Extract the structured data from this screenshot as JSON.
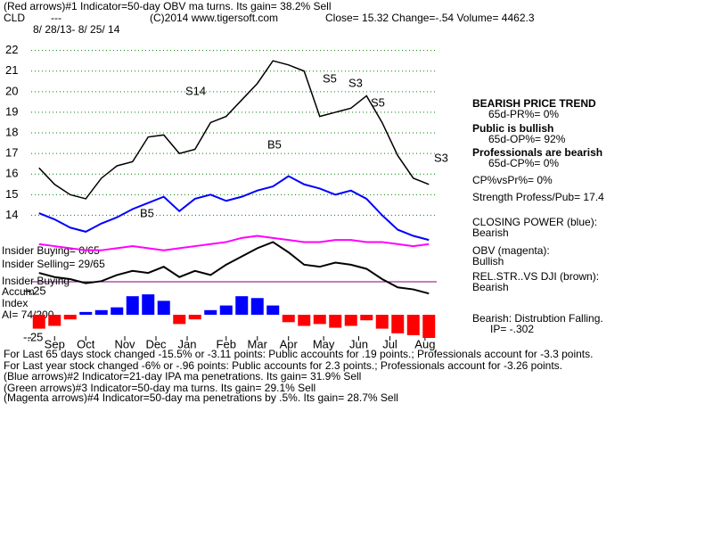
{
  "texts": {
    "line1": "(Red arrows)#1 Indicator=50-day OBV ma turns. Its gain= 38.2% Sell",
    "symbol": "CLD",
    "dash": "---",
    "copyright": "(C)2014 www.tigersoft.com",
    "quote": "Close=  15.32  Change=-.54 Volume= 4462.3",
    "dates": "8/ 28/13- 8/ 25/ 14",
    "insider_buying": "Insider Buying= 0/65",
    "insider_selling": "Insider Selling= 29/65",
    "insider_buying2": "Insider Buying",
    "accum": "Accum",
    "index": "Index",
    "ai": "AI= 74/200",
    "trend": "BEARISH PRICE TREND",
    "pr": "65d-PR%= 0%",
    "public": "Public is bullish",
    "op": "65d-OP%= 92%",
    "pros": "Professionals are bearish",
    "cp": "65d-CP%= 0%",
    "cpvspr": "CP%vsPr%=  0%",
    "strength": "Strength Profess/Pub= 17.4",
    "cp_label": "CLOSING POWER (blue):",
    "cp_state": "Bearish",
    "obv_label": "OBV (magenta):",
    "obv_state": "Bullish",
    "rs_label": "REL.STR..VS DJI (brown):",
    "rs_state": "Bearish",
    "dist": "Bearish: Distrubtion Falling.",
    "ip": "IP= -.302",
    "foot1": "For Last 65 days stock changed -15.5% or -3.11 points:  Public accounts for  .19 points.;  Professionals account for -3.3 points.",
    "foot2": "For Last year stock changed -6% or -.96 points:  Public accounts for  2.3 points.;  Professionals account for -3.26 points.",
    "foot3": "(Blue arrows)#2 Indicator=21-day IPA ma penetrations. Its gain= 31.9% Sell",
    "foot4": "(Green arrows)#3 Indicator=50-day ma turns. Its gain= 29.1% Sell",
    "foot5": "(Magenta arrows)#4 Indicator=50-day ma penetrations by .5%. Its gain= 28.7% Sell",
    "ann1": "S14",
    "ann2": "S5",
    "ann3": "S3",
    "ann4": "S5",
    "ann5": "B5",
    "ann6": "S3",
    "ann7": "B5"
  },
  "chart_data": {
    "type": "line",
    "x": [
      0,
      2,
      4,
      6,
      8,
      10,
      12,
      14,
      16,
      18,
      20,
      22,
      24,
      26,
      28,
      30,
      32,
      34,
      36,
      38,
      40,
      42,
      44,
      46,
      48,
      50
    ],
    "xlim": [
      -1,
      51
    ],
    "xticks": [
      {
        "value": 2,
        "label": "Sep"
      },
      {
        "value": 6,
        "label": "Oct"
      },
      {
        "value": 11,
        "label": "Nov"
      },
      {
        "value": 15,
        "label": "Dec"
      },
      {
        "value": 19,
        "label": "Jan"
      },
      {
        "value": 24,
        "label": "Feb"
      },
      {
        "value": 28,
        "label": "Mar"
      },
      {
        "value": 32,
        "label": "Apr"
      },
      {
        "value": 36.5,
        "label": "May"
      },
      {
        "value": 41,
        "label": "Jun"
      },
      {
        "value": 45,
        "label": "Jul"
      },
      {
        "value": 49.5,
        "label": "Aug"
      }
    ],
    "ylim": [
      8,
      23.5
    ],
    "yticks": [
      14,
      15,
      16,
      17,
      18,
      19,
      20,
      21,
      22
    ],
    "grid": true,
    "series": [
      {
        "color": "#000000",
        "values": [
          16.3,
          15.5,
          15.0,
          14.8,
          15.8,
          16.4,
          16.6,
          17.8,
          17.9,
          17.0,
          17.2,
          18.5,
          18.8,
          19.6,
          20.4,
          21.5,
          21.3,
          21.0,
          18.8,
          19.0,
          19.2,
          19.8,
          18.5,
          16.9,
          15.8,
          15.5
        ]
      },
      {
        "color": "#0000ff",
        "values": [
          14.1,
          13.8,
          13.4,
          13.2,
          13.6,
          13.9,
          14.3,
          14.6,
          14.9,
          14.2,
          14.8,
          15.0,
          14.7,
          14.9,
          15.2,
          15.4,
          15.9,
          15.5,
          15.3,
          15.0,
          15.2,
          14.8,
          14.0,
          13.3,
          13.0,
          12.8
        ]
      },
      {
        "color": "#ff00ff",
        "values": [
          12.6,
          12.5,
          12.4,
          12.3,
          12.3,
          12.4,
          12.5,
          12.4,
          12.3,
          12.4,
          12.5,
          12.6,
          12.7,
          12.9,
          13.0,
          12.9,
          12.8,
          12.7,
          12.7,
          12.8,
          12.8,
          12.7,
          12.7,
          12.6,
          12.5,
          12.6
        ]
      },
      {
        "color": "#000000",
        "values": [
          11.2,
          11.0,
          10.9,
          10.7,
          10.8,
          11.1,
          11.3,
          11.2,
          11.5,
          11.0,
          11.3,
          11.1,
          11.6,
          12.0,
          12.4,
          12.7,
          12.2,
          11.6,
          11.5,
          11.7,
          11.6,
          11.4,
          10.9,
          10.5,
          10.4,
          10.2
        ]
      }
    ],
    "accum": {
      "ylim": [
        -0.25,
        0.25
      ],
      "yticks": [
        {
          "value": 0.25,
          "label": "+.25"
        },
        {
          "value": -0.25,
          "label": "-.25"
        }
      ],
      "positive_color": "#0000ff",
      "negative_color": "#ff0000",
      "values": [
        -0.15,
        -0.12,
        -0.05,
        0.03,
        0.05,
        0.08,
        0.2,
        0.22,
        0.15,
        -0.1,
        -0.05,
        0.05,
        0.1,
        0.2,
        0.18,
        0.1,
        -0.08,
        -0.12,
        -0.1,
        -0.14,
        -0.12,
        -0.06,
        -0.15,
        -0.2,
        -0.22,
        -0.25
      ]
    }
  }
}
